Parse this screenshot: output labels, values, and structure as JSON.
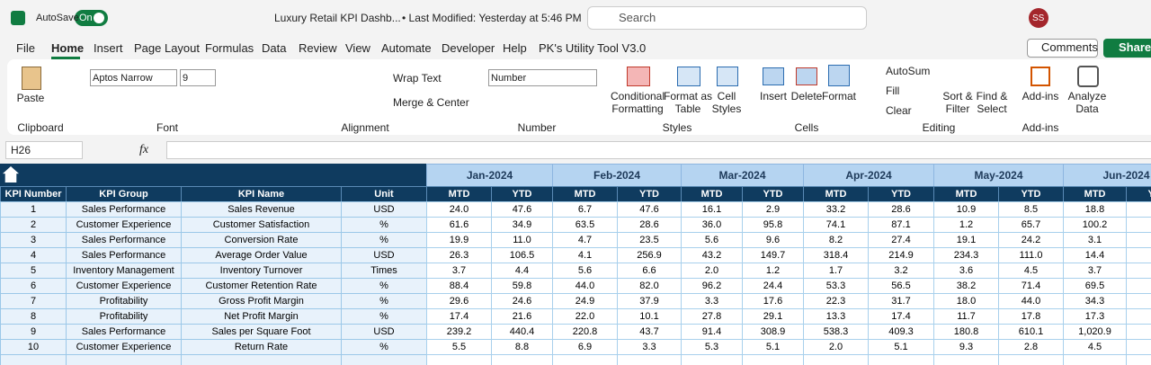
{
  "title_bar": {
    "autosave": "AutoSave",
    "toggle": "On",
    "document_title": "Luxury Retail KPI Dashb...",
    "last_modified": "• Last Modified: Yesterday at 5:46 PM",
    "search": "Search",
    "user_initials": "SS"
  },
  "menu": {
    "tabs": [
      "File",
      "Home",
      "Insert",
      "Page Layout",
      "Formulas",
      "Data",
      "Review",
      "View",
      "Automate",
      "Developer",
      "Help",
      "PK's Utility Tool V3.0"
    ],
    "comments": "Comments",
    "share": "Share"
  },
  "ribbon": {
    "clipboard": {
      "paste": "Paste",
      "label": "Clipboard"
    },
    "font": {
      "name": "Aptos Narrow",
      "size": "9",
      "label": "Font"
    },
    "alignment": {
      "wrap_text": "Wrap Text",
      "merge_center": "Merge & Center",
      "label": "Alignment"
    },
    "number": {
      "format": "Number",
      "label": "Number"
    },
    "styles": {
      "conditional_formatting": "Conditional Formatting",
      "format_as_table": "Format as Table",
      "cell_styles": "Cell Styles",
      "label": "Styles"
    },
    "cells": {
      "insert": "Insert",
      "delete": "Delete",
      "format": "Format",
      "label": "Cells"
    },
    "editing": {
      "autosum": "AutoSum",
      "fill": "Fill",
      "clear": "Clear",
      "sort_filter": "Sort & Filter",
      "find_select": "Find & Select",
      "label": "Editing"
    },
    "addins": {
      "addins": "Add-ins",
      "label": "Add-ins"
    },
    "analyze_data": "Analyze Data"
  },
  "formula_bar": {
    "name_box": "H26",
    "fx": "fx"
  },
  "sheet": {
    "months": [
      "Jan-2024",
      "Feb-2024",
      "Mar-2024",
      "Apr-2024",
      "May-2024",
      "Jun-2024"
    ],
    "headers": [
      "KPI Number",
      "KPI Group",
      "KPI Name",
      "Unit"
    ],
    "measures": [
      "MTD",
      "YTD"
    ],
    "rows": [
      [
        "1",
        "Sales Performance",
        "Sales Revenue",
        "USD",
        "24.0",
        "47.6",
        "6.7",
        "47.6",
        "16.1",
        "2.9",
        "33.2",
        "28.6",
        "10.9",
        "8.5",
        "18.8"
      ],
      [
        "2",
        "Customer Experience",
        "Customer Satisfaction",
        "%",
        "61.6",
        "34.9",
        "63.5",
        "28.6",
        "36.0",
        "95.8",
        "74.1",
        "87.1",
        "1.2",
        "65.7",
        "100.2"
      ],
      [
        "3",
        "Sales Performance",
        "Conversion Rate",
        "%",
        "19.9",
        "11.0",
        "4.7",
        "23.5",
        "5.6",
        "9.6",
        "8.2",
        "27.4",
        "19.1",
        "24.2",
        "3.1"
      ],
      [
        "4",
        "Sales Performance",
        "Average Order Value",
        "USD",
        "26.3",
        "106.5",
        "4.1",
        "256.9",
        "43.2",
        "149.7",
        "318.4",
        "214.9",
        "234.3",
        "111.0",
        "14.4"
      ],
      [
        "5",
        "Inventory Management",
        "Inventory Turnover",
        "Times",
        "3.7",
        "4.4",
        "5.6",
        "6.6",
        "2.0",
        "1.2",
        "1.7",
        "3.2",
        "3.6",
        "4.5",
        "3.7"
      ],
      [
        "6",
        "Customer Experience",
        "Customer Retention Rate",
        "%",
        "88.4",
        "59.8",
        "44.0",
        "82.0",
        "96.2",
        "24.4",
        "53.3",
        "56.5",
        "38.2",
        "71.4",
        "69.5"
      ],
      [
        "7",
        "Profitability",
        "Gross Profit Margin",
        "%",
        "29.6",
        "24.6",
        "24.9",
        "37.9",
        "3.3",
        "17.6",
        "22.3",
        "31.7",
        "18.0",
        "44.0",
        "34.3"
      ],
      [
        "8",
        "Profitability",
        "Net Profit Margin",
        "%",
        "17.4",
        "21.6",
        "22.0",
        "10.1",
        "27.8",
        "29.1",
        "13.3",
        "17.4",
        "11.7",
        "17.8",
        "17.3"
      ],
      [
        "9",
        "Sales Performance",
        "Sales per Square Foot",
        "USD",
        "239.2",
        "440.4",
        "220.8",
        "43.7",
        "91.4",
        "308.9",
        "538.3",
        "409.3",
        "180.8",
        "610.1",
        "1,020.9"
      ],
      [
        "10",
        "Customer Experience",
        "Return Rate",
        "%",
        "5.5",
        "8.8",
        "6.9",
        "3.3",
        "5.3",
        "5.1",
        "2.0",
        "5.1",
        "9.3",
        "2.8",
        "4.5"
      ]
    ]
  }
}
